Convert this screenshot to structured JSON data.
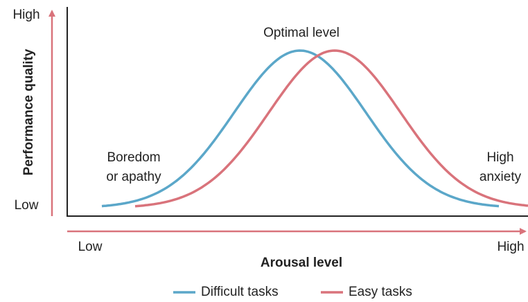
{
  "y_axis": {
    "title": "Performance quality",
    "high": "High",
    "low": "Low"
  },
  "x_axis": {
    "title": "Arousal level",
    "low": "Low",
    "high": "High"
  },
  "annotations": {
    "peak": "Optimal level",
    "left": [
      "Boredom",
      "or apathy"
    ],
    "right": [
      "High",
      "anxiety"
    ]
  },
  "legend": [
    {
      "name": "Difficult tasks",
      "color": "#5ba7c9"
    },
    {
      "name": "Easy tasks",
      "color": "#d9737b"
    }
  ]
}
